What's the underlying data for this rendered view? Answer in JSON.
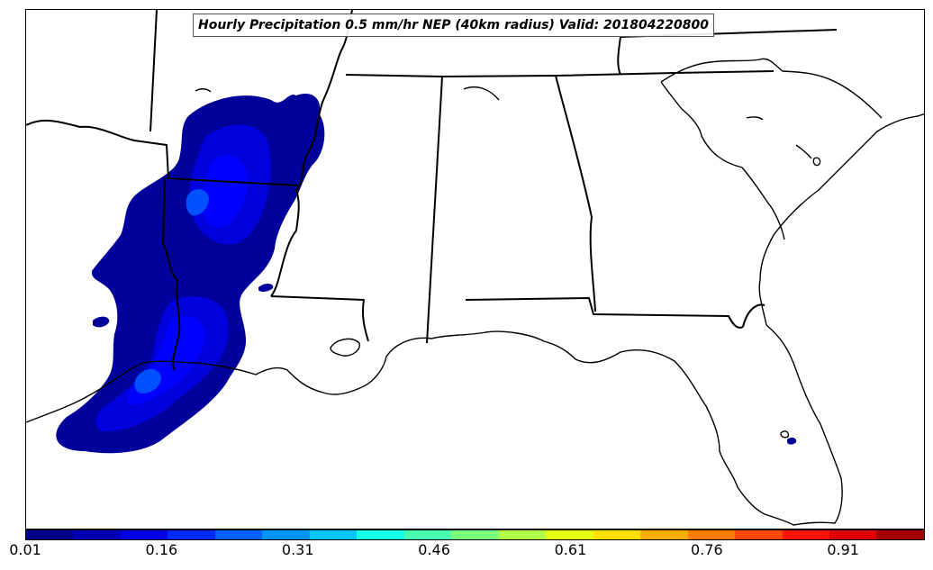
{
  "title": "Hourly Precipitation 0.5 mm/hr NEP (40km radius) Valid: 201804220800",
  "colorbar": {
    "colors": [
      "#00008a",
      "#0000b4",
      "#0000e6",
      "#0028ff",
      "#0060ff",
      "#0094ff",
      "#00c8ff",
      "#14ffe6",
      "#48ffb0",
      "#7cff7c",
      "#b0ff48",
      "#e6ff14",
      "#ffe000",
      "#ffae00",
      "#ff7c00",
      "#ff4800",
      "#ff1400",
      "#dc0000",
      "#a40000"
    ],
    "tick_labels": [
      "0.01",
      "0.16",
      "0.31",
      "0.46",
      "0.61",
      "0.76",
      "0.91"
    ],
    "min": 0.01,
    "max": 1.0
  },
  "map": {
    "region": "Southeastern United States",
    "colors": {
      "border": "#000000",
      "low": "#00009a",
      "mid": "#0000ff",
      "high": "#0050ff"
    }
  }
}
